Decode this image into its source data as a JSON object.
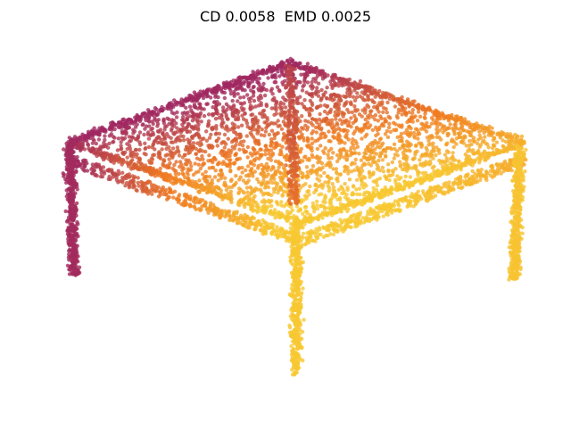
{
  "title": "CD 0.0058  EMD 0.0025"
}
